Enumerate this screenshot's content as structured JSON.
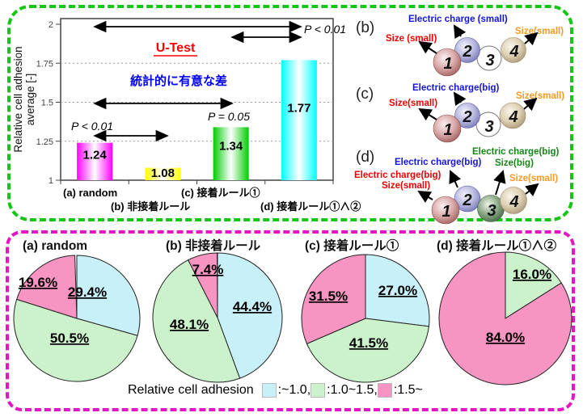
{
  "chart_data": [
    {
      "type": "bar",
      "title": "U-Test",
      "title_color": "#ff0000",
      "subtitle": "統計的に有意な差",
      "subtitle_color": "#0000ee",
      "ylabel": "Relative cell adhesion average [-]",
      "ylabel_lines": [
        "Relative cell adhesion",
        "average [-]"
      ],
      "categories": [
        "(a) random",
        "(b) 非接着ルール",
        "(c) 接着ルール①",
        "(d) 接着ルール①∧②"
      ],
      "values": [
        1.24,
        1.08,
        1.34,
        1.77
      ],
      "value_labels": [
        "1.24",
        "1.08",
        "1.34",
        "1.77"
      ],
      "bar_colors": [
        "#ff00ff",
        "#ffff00",
        "#00cc00",
        "#00ffff"
      ],
      "ylim": [
        1,
        2
      ],
      "yticks": [
        "1",
        "1.25",
        "1.5",
        "1.75",
        "2"
      ],
      "grid": "dotted-horizontal",
      "legend_position": "none",
      "significance": [
        {
          "between": "(a)-(d) and (c)-(d)",
          "label": "P < 0.01"
        },
        {
          "between": "(a)-(c)",
          "label": "P = 0.05"
        },
        {
          "between": "(a)-(b)",
          "label": "P < 0.01"
        }
      ]
    },
    {
      "type": "pie",
      "title": "(a) random",
      "labels": [
        "~1.0",
        "1.0~1.5",
        "1.5~"
      ],
      "values": [
        29.4,
        50.5,
        19.6
      ],
      "value_labels": [
        "29.4%",
        "50.5%",
        "19.6%"
      ],
      "colors": [
        "#c7f0f8",
        "#cbf2cb",
        "#f794c1"
      ]
    },
    {
      "type": "pie",
      "title": "(b) 非接着ルール",
      "labels": [
        "~1.0",
        "1.0~1.5",
        "1.5~"
      ],
      "values": [
        44.4,
        48.1,
        7.4
      ],
      "value_labels": [
        "44.4%",
        "48.1%",
        "7.4%"
      ],
      "colors": [
        "#c7f0f8",
        "#cbf2cb",
        "#f794c1"
      ]
    },
    {
      "type": "pie",
      "title": "(c) 接着ルール①",
      "labels": [
        "~1.0",
        "1.0~1.5",
        "1.5~"
      ],
      "values": [
        27.0,
        41.5,
        31.5
      ],
      "value_labels": [
        "27.0%",
        "41.5%",
        "31.5%"
      ],
      "colors": [
        "#c7f0f8",
        "#cbf2cb",
        "#f794c1"
      ]
    },
    {
      "type": "pie",
      "title": "(d) 接着ルール①∧②",
      "labels": [
        "~1.0",
        "1.0~1.5",
        "1.5~"
      ],
      "values": [
        0,
        16.0,
        84.0
      ],
      "value_labels": [
        "",
        "16.0%",
        "84.0%"
      ],
      "colors": [
        "#c7f0f8",
        "#cbf2cb",
        "#f794c1"
      ]
    }
  ],
  "legend": {
    "title": "Relative cell adhesion",
    "entries": [
      {
        "label": ":~1.0,",
        "color": "#c7f0f8"
      },
      {
        "label": ":1.0~1.5,",
        "color": "#cbf2cb"
      },
      {
        "label": ":1.5~",
        "color": "#f794c1"
      }
    ]
  },
  "diagrams": {
    "b": {
      "label": "(b)",
      "charge_label": {
        "text": "Electric charge (small)",
        "color": "#1414e0"
      },
      "size_left_label": {
        "text": "Size (small)",
        "color": "#ee0000"
      },
      "size_right_label": {
        "text": "Size(small)",
        "color": "#f59a23"
      },
      "balls": [
        {
          "n": "1",
          "color": "rosy"
        },
        {
          "n": "2",
          "color": "lavender"
        },
        {
          "n": "3",
          "color": "white"
        },
        {
          "n": "4",
          "color": "tan"
        }
      ]
    },
    "c": {
      "label": "(c)",
      "charge_label": {
        "text": "Electric charge(big)",
        "color": "#1414e0"
      },
      "size_left_label": {
        "text": "Size(small)",
        "color": "#ee0000"
      },
      "size_right_label": {
        "text": "Size(small)",
        "color": "#f59a23"
      },
      "balls": [
        {
          "n": "1",
          "color": "rosy"
        },
        {
          "n": "2",
          "color": "lavender"
        },
        {
          "n": "3",
          "color": "white"
        },
        {
          "n": "4",
          "color": "tan"
        }
      ]
    },
    "d": {
      "label": "(d)",
      "left_label": {
        "line1": "Electric charge(big)",
        "line2": "Size(small)",
        "color": "#ee0000"
      },
      "charge_label": {
        "text": "Electric charge(big)",
        "color": "#1414e0"
      },
      "mid_label": {
        "line1": "Electric charge(big)",
        "line2": "Size(big)",
        "color": "#168716"
      },
      "size_right_label": {
        "text": "Size(small)",
        "color": "#f59a23"
      },
      "balls": [
        {
          "n": "1",
          "color": "rosy"
        },
        {
          "n": "2",
          "color": "lavender"
        },
        {
          "n": "3",
          "color": "green"
        },
        {
          "n": "4",
          "color": "tan"
        }
      ]
    }
  },
  "panel_colors": {
    "top_border": "#15c615",
    "bottom_border": "#e316c3"
  }
}
